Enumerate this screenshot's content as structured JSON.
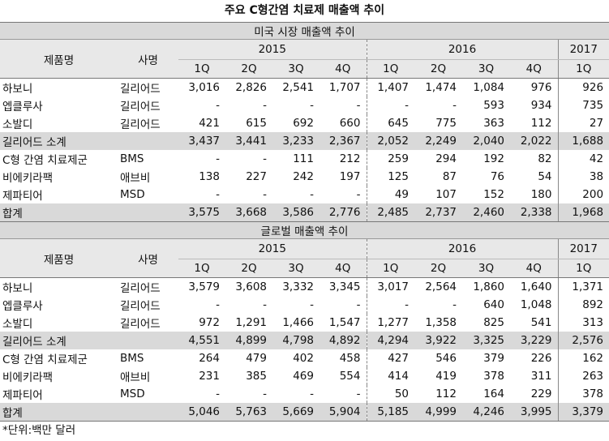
{
  "title": "주요 C형간염 치료제 매출액 추이",
  "sections": [
    {
      "title": "미국 시장 매출액 추이",
      "header": {
        "product": "제품명",
        "company": "사명",
        "years": [
          "2015",
          "2016",
          "2017"
        ],
        "quarters": [
          "1Q",
          "2Q",
          "3Q",
          "4Q",
          "1Q",
          "2Q",
          "3Q",
          "4Q",
          "1Q"
        ]
      },
      "rows": [
        {
          "product": "하보니",
          "company": "길리어드",
          "values": [
            "3,016",
            "2,826",
            "2,541",
            "1,707",
            "1,407",
            "1,474",
            "1,084",
            "976",
            "926"
          ]
        },
        {
          "product": "엡클루사",
          "company": "길리어드",
          "values": [
            "-",
            "-",
            "-",
            "-",
            "-",
            "-",
            "593",
            "934",
            "735"
          ]
        },
        {
          "product": "소발디",
          "company": "길리어드",
          "values": [
            "421",
            "615",
            "692",
            "660",
            "645",
            "775",
            "363",
            "112",
            "27"
          ]
        },
        {
          "product": "길리어드 소계",
          "subtotal": true,
          "values": [
            "3,437",
            "3,441",
            "3,233",
            "2,367",
            "2,052",
            "2,249",
            "2,040",
            "2,022",
            "1,688"
          ]
        },
        {
          "product": "C형 간염 치료제군",
          "company": "BMS",
          "values": [
            "-",
            "-",
            "111",
            "212",
            "259",
            "294",
            "192",
            "82",
            "42"
          ]
        },
        {
          "product": "비에키라팩",
          "company": "애브비",
          "values": [
            "138",
            "227",
            "242",
            "197",
            "125",
            "87",
            "76",
            "54",
            "38"
          ]
        },
        {
          "product": "제파티어",
          "company": "MSD",
          "values": [
            "-",
            "-",
            "-",
            "-",
            "49",
            "107",
            "152",
            "180",
            "200"
          ]
        },
        {
          "product": "합계",
          "subtotal": true,
          "values": [
            "3,575",
            "3,668",
            "3,586",
            "2,776",
            "2,485",
            "2,737",
            "2,460",
            "2,338",
            "1,968"
          ]
        }
      ]
    },
    {
      "title": "글로벌 매출액 추이",
      "header": {
        "product": "제품명",
        "company": "사명",
        "years": [
          "2015",
          "2016",
          "2017"
        ],
        "quarters": [
          "1Q",
          "2Q",
          "3Q",
          "4Q",
          "1Q",
          "2Q",
          "3Q",
          "4Q",
          "1Q"
        ]
      },
      "rows": [
        {
          "product": "하보니",
          "company": "길리어드",
          "values": [
            "3,579",
            "3,608",
            "3,332",
            "3,345",
            "3,017",
            "2,564",
            "1,860",
            "1,640",
            "1,371"
          ]
        },
        {
          "product": "엡클루사",
          "company": "길리어드",
          "values": [
            "-",
            "-",
            "-",
            "-",
            "-",
            "-",
            "640",
            "1,048",
            "892"
          ]
        },
        {
          "product": "소발디",
          "company": "길리어드",
          "values": [
            "972",
            "1,291",
            "1,466",
            "1,547",
            "1,277",
            "1,358",
            "825",
            "541",
            "313"
          ]
        },
        {
          "product": "길리어드 소계",
          "subtotal": true,
          "values": [
            "4,551",
            "4,899",
            "4,798",
            "4,892",
            "4,294",
            "3,922",
            "3,325",
            "3,229",
            "2,576"
          ]
        },
        {
          "product": "C형 간염 치료제군",
          "company": "BMS",
          "values": [
            "264",
            "479",
            "402",
            "458",
            "427",
            "546",
            "379",
            "226",
            "162"
          ]
        },
        {
          "product": "비에키라팩",
          "company": "애브비",
          "values": [
            "231",
            "385",
            "469",
            "554",
            "414",
            "419",
            "378",
            "311",
            "263"
          ]
        },
        {
          "product": "제파티어",
          "company": "MSD",
          "values": [
            "-",
            "-",
            "-",
            "-",
            "50",
            "112",
            "164",
            "229",
            "378"
          ]
        },
        {
          "product": "합계",
          "subtotal": true,
          "values": [
            "5,046",
            "5,763",
            "5,669",
            "5,904",
            "5,185",
            "4,999",
            "4,246",
            "3,995",
            "3,379"
          ]
        }
      ]
    }
  ],
  "note": "*단위:백만 달러"
}
